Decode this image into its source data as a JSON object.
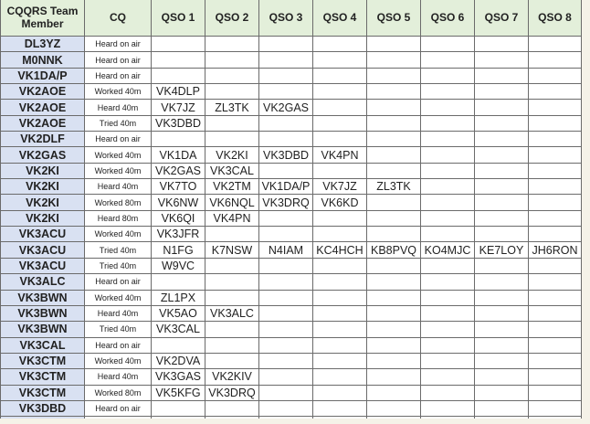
{
  "headers": [
    "CQQRS Team Member",
    "CQ",
    "QSO 1",
    "QSO 2",
    "QSO 3",
    "QSO 4",
    "QSO 5",
    "QSO 6",
    "QSO 7",
    "QSO 8"
  ],
  "rows": [
    [
      "DL3YZ",
      "Heard on air",
      "",
      "",
      "",
      "",
      "",
      "",
      "",
      ""
    ],
    [
      "M0NNK",
      "Heard on air",
      "",
      "",
      "",
      "",
      "",
      "",
      "",
      ""
    ],
    [
      "VK1DA/P",
      "Heard on air",
      "",
      "",
      "",
      "",
      "",
      "",
      "",
      ""
    ],
    [
      "VK2AOE",
      "Worked 40m",
      "VK4DLP",
      "",
      "",
      "",
      "",
      "",
      "",
      ""
    ],
    [
      "VK2AOE",
      "Heard 40m",
      "VK7JZ",
      "ZL3TK",
      "VK2GAS",
      "",
      "",
      "",
      "",
      ""
    ],
    [
      "VK2AOE",
      "Tried 40m",
      "VK3DBD",
      "",
      "",
      "",
      "",
      "",
      "",
      ""
    ],
    [
      "VK2DLF",
      "Heard on air",
      "",
      "",
      "",
      "",
      "",
      "",
      "",
      ""
    ],
    [
      "VK2GAS",
      "Worked 40m",
      "VK1DA",
      "VK2KI",
      "VK3DBD",
      "VK4PN",
      "",
      "",
      "",
      ""
    ],
    [
      "VK2KI",
      "Worked 40m",
      "VK2GAS",
      "VK3CAL",
      "",
      "",
      "",
      "",
      "",
      ""
    ],
    [
      "VK2KI",
      "Heard 40m",
      "VK7TO",
      "VK2TM",
      "VK1DA/P",
      "VK7JZ",
      "ZL3TK",
      "",
      "",
      ""
    ],
    [
      "VK2KI",
      "Worked 80m",
      "VK6NW",
      "VK6NQL",
      "VK3DRQ",
      "VK6KD",
      "",
      "",
      "",
      ""
    ],
    [
      "VK2KI",
      "Heard 80m",
      "VK6QI",
      "VK4PN",
      "",
      "",
      "",
      "",
      "",
      ""
    ],
    [
      "VK3ACU",
      "Worked 40m",
      "VK3JFR",
      "",
      "",
      "",
      "",
      "",
      "",
      ""
    ],
    [
      "VK3ACU",
      "Tried 40m",
      "N1FG",
      "K7NSW",
      "N4IAM",
      "KC4HCH",
      "KB8PVQ",
      "KO4MJC",
      "KE7LOY",
      "JH6RON"
    ],
    [
      "VK3ACU",
      "Tried 40m",
      "W9VC",
      "",
      "",
      "",
      "",
      "",
      "",
      ""
    ],
    [
      "VK3ALC",
      "Heard on air",
      "",
      "",
      "",
      "",
      "",
      "",
      "",
      ""
    ],
    [
      "VK3BWN",
      "Worked 40m",
      "ZL1PX",
      "",
      "",
      "",
      "",
      "",
      "",
      ""
    ],
    [
      "VK3BWN",
      "Heard 40m",
      "VK5AO",
      "VK3ALC",
      "",
      "",
      "",
      "",
      "",
      ""
    ],
    [
      "VK3BWN",
      "Tried 40m",
      "VK3CAL",
      "",
      "",
      "",
      "",
      "",
      "",
      ""
    ],
    [
      "VK3CAL",
      "Heard on air",
      "",
      "",
      "",
      "",
      "",
      "",
      "",
      ""
    ],
    [
      "VK3CTM",
      "Worked 40m",
      "VK2DVA",
      "",
      "",
      "",
      "",
      "",
      "",
      ""
    ],
    [
      "VK3CTM",
      "Heard 40m",
      "VK3GAS",
      "VK2KIV",
      "",
      "",
      "",
      "",
      "",
      ""
    ],
    [
      "VK3CTM",
      "Worked 80m",
      "VK5KFG",
      "VK3DRQ",
      "",
      "",
      "",
      "",
      "",
      ""
    ],
    [
      "VK3DBD",
      "Heard on air",
      "",
      "",
      "",
      "",
      "",
      "",
      "",
      ""
    ]
  ],
  "colors": {
    "header_bg": "#e3efda",
    "member_bg": "#d9e1f2",
    "border": "#6b6b6b"
  }
}
